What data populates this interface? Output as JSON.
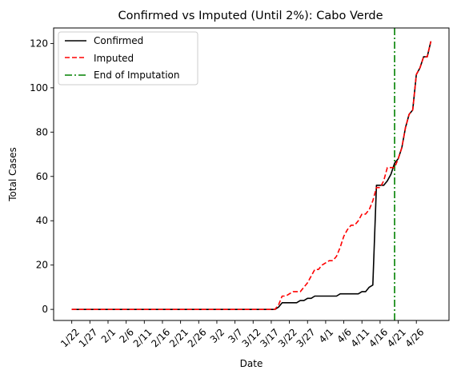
{
  "chart_data": {
    "type": "line",
    "title": "Confirmed vs Imputed (Until 2%): Cabo Verde",
    "xlabel": "Date",
    "ylabel": "Total Cases",
    "x_tick_labels": [
      "1/22",
      "1/27",
      "2/1",
      "2/6",
      "2/11",
      "2/16",
      "2/21",
      "2/26",
      "3/2",
      "3/7",
      "3/12",
      "3/17",
      "3/22",
      "3/27",
      "4/1",
      "4/6",
      "4/11",
      "4/16",
      "4/21",
      "4/26"
    ],
    "y_ticks": [
      0,
      20,
      40,
      60,
      80,
      100,
      120
    ],
    "ylim": [
      -5,
      127
    ],
    "legend_position": "top-left",
    "grid": false,
    "series": [
      {
        "name": "Confirmed",
        "color": "#000000",
        "style": "solid",
        "points": [
          [
            "1/22",
            0
          ],
          [
            "3/18",
            0
          ],
          [
            "3/19",
            1
          ],
          [
            "3/20",
            3
          ],
          [
            "3/21",
            3
          ],
          [
            "3/22",
            3
          ],
          [
            "3/23",
            3
          ],
          [
            "3/24",
            3
          ],
          [
            "3/25",
            4
          ],
          [
            "3/26",
            4
          ],
          [
            "3/27",
            5
          ],
          [
            "3/28",
            5
          ],
          [
            "3/29",
            6
          ],
          [
            "3/30",
            6
          ],
          [
            "3/31",
            6
          ],
          [
            "4/1",
            6
          ],
          [
            "4/2",
            6
          ],
          [
            "4/3",
            6
          ],
          [
            "4/4",
            6
          ],
          [
            "4/5",
            7
          ],
          [
            "4/6",
            7
          ],
          [
            "4/7",
            7
          ],
          [
            "4/8",
            7
          ],
          [
            "4/9",
            7
          ],
          [
            "4/10",
            7
          ],
          [
            "4/11",
            8
          ],
          [
            "4/12",
            8
          ],
          [
            "4/13",
            10
          ],
          [
            "4/14",
            11
          ],
          [
            "4/15",
            56
          ],
          [
            "4/16",
            56
          ],
          [
            "4/17",
            56
          ],
          [
            "4/18",
            58
          ],
          [
            "4/19",
            61
          ],
          [
            "4/20",
            66
          ],
          [
            "4/21",
            68
          ],
          [
            "4/22",
            73
          ],
          [
            "4/23",
            82
          ],
          [
            "4/24",
            88
          ],
          [
            "4/25",
            90
          ],
          [
            "4/26",
            106
          ],
          [
            "4/27",
            109
          ],
          [
            "4/28",
            114
          ],
          [
            "4/29",
            114
          ],
          [
            "4/30",
            121
          ]
        ]
      },
      {
        "name": "Imputed",
        "color": "#ff0000",
        "style": "dashed",
        "points": [
          [
            "1/22",
            0
          ],
          [
            "3/18",
            0
          ],
          [
            "3/19",
            2
          ],
          [
            "3/20",
            6
          ],
          [
            "3/21",
            6
          ],
          [
            "3/22",
            7
          ],
          [
            "3/23",
            8
          ],
          [
            "3/24",
            8
          ],
          [
            "3/25",
            8
          ],
          [
            "3/26",
            10
          ],
          [
            "3/27",
            12
          ],
          [
            "3/28",
            15
          ],
          [
            "3/29",
            18
          ],
          [
            "3/30",
            18
          ],
          [
            "3/31",
            20
          ],
          [
            "4/1",
            21
          ],
          [
            "4/2",
            22
          ],
          [
            "4/3",
            22
          ],
          [
            "4/4",
            24
          ],
          [
            "4/5",
            28
          ],
          [
            "4/6",
            33
          ],
          [
            "4/7",
            36
          ],
          [
            "4/8",
            38
          ],
          [
            "4/9",
            38
          ],
          [
            "4/10",
            40
          ],
          [
            "4/11",
            43
          ],
          [
            "4/12",
            43
          ],
          [
            "4/13",
            45
          ],
          [
            "4/14",
            49
          ],
          [
            "4/15",
            55
          ],
          [
            "4/16",
            55
          ],
          [
            "4/17",
            58
          ],
          [
            "4/18",
            64
          ],
          [
            "4/19",
            64
          ],
          [
            "4/20",
            64
          ],
          [
            "4/21",
            68
          ],
          [
            "4/22",
            73
          ],
          [
            "4/23",
            82
          ],
          [
            "4/24",
            88
          ],
          [
            "4/25",
            90
          ],
          [
            "4/26",
            106
          ],
          [
            "4/27",
            109
          ],
          [
            "4/28",
            114
          ],
          [
            "4/29",
            114
          ],
          [
            "4/30",
            121
          ]
        ]
      },
      {
        "name": "End of Imputation",
        "color": "#008000",
        "style": "dashdot",
        "type": "vline",
        "x": "4/20"
      }
    ]
  }
}
